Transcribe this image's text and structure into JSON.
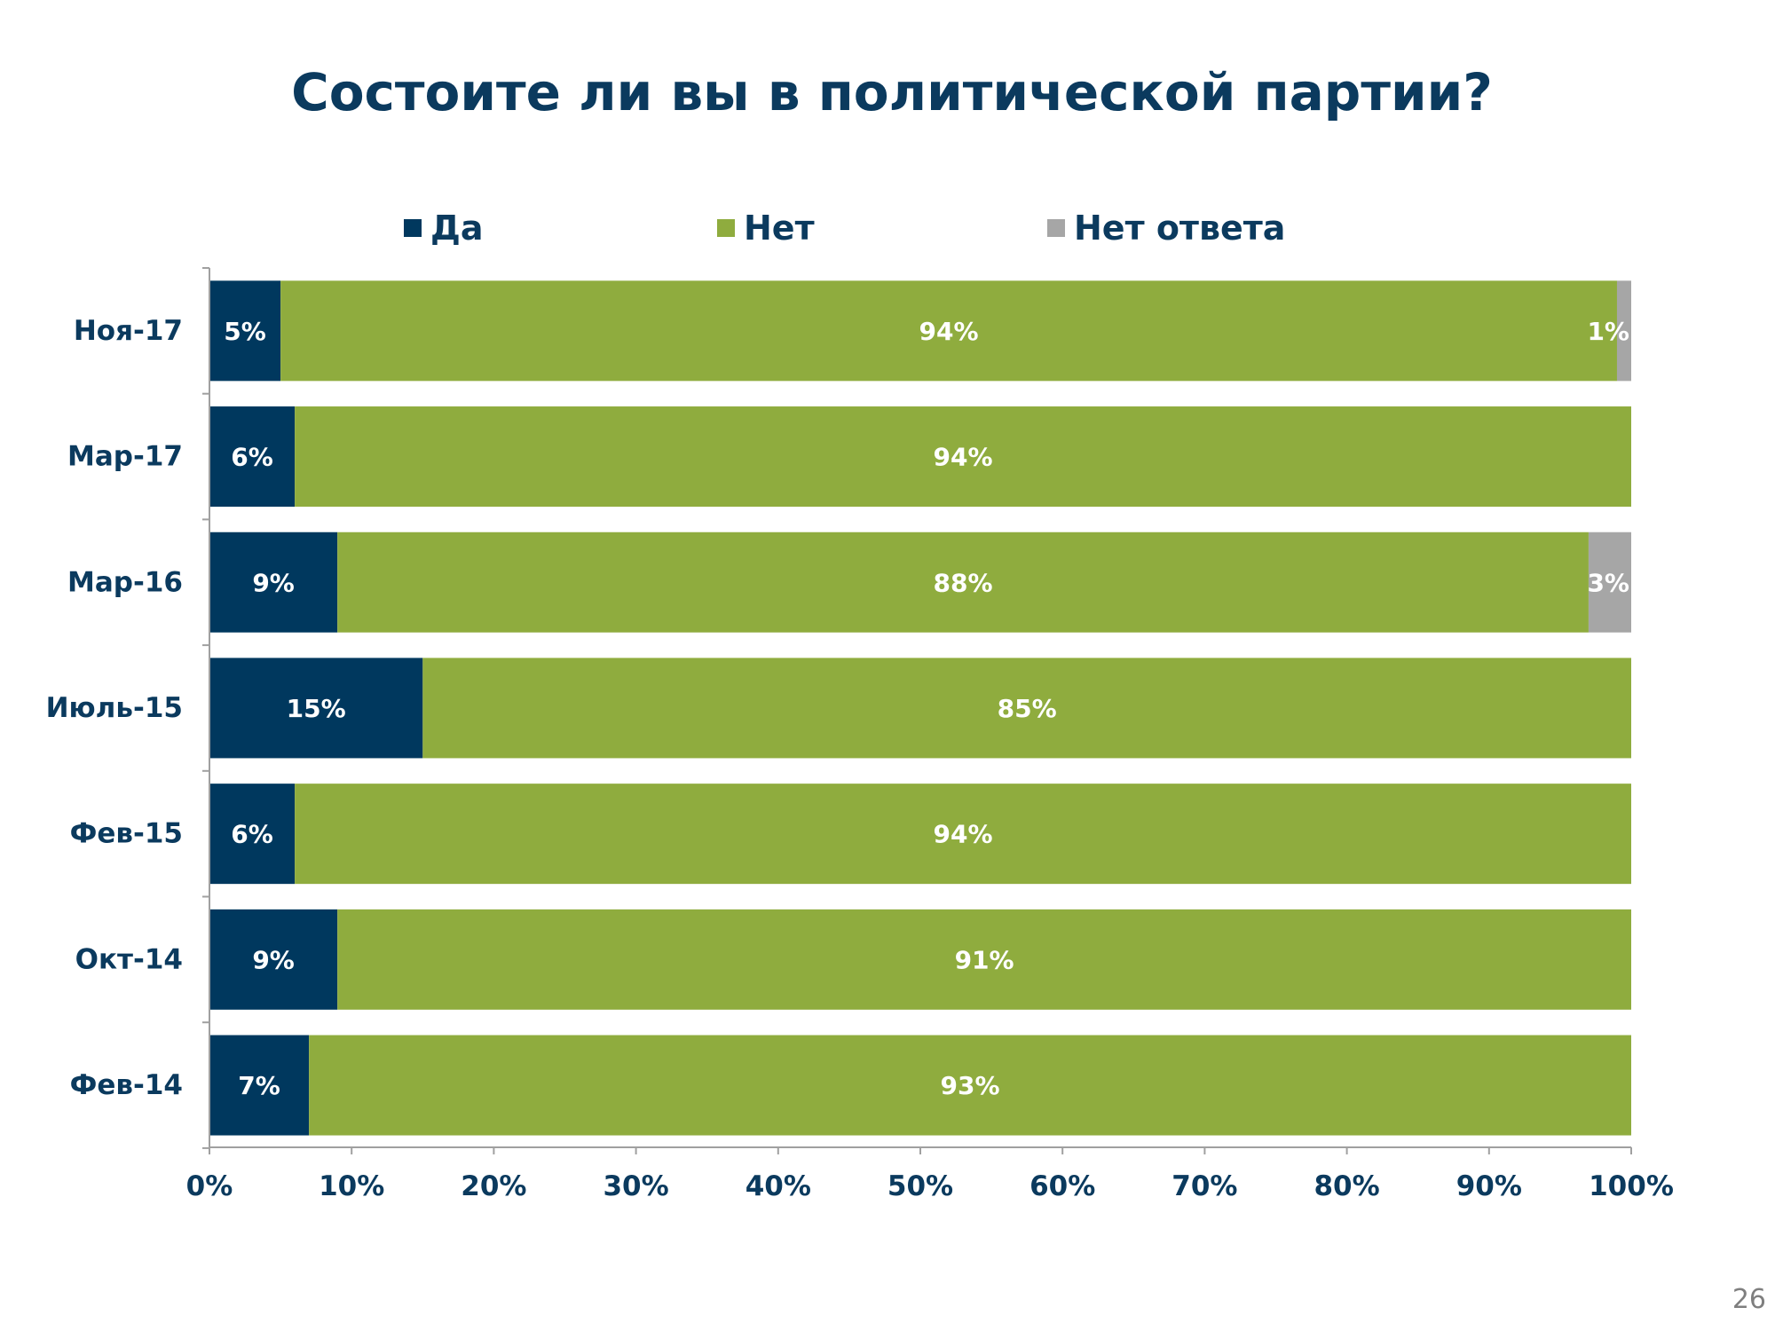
{
  "page_number": "26",
  "chart_data": {
    "type": "bar",
    "orientation": "horizontal",
    "stacked": "percent",
    "title": "Состоите ли вы в политической партии?",
    "categories": [
      "Ноя-17",
      "Мар-17",
      "Мар-16",
      "Июль-15",
      "Фев-15",
      "Окт-14",
      "Фев-14"
    ],
    "series": [
      {
        "name": "Да",
        "color": "#00385e",
        "values": [
          5,
          6,
          9,
          15,
          6,
          9,
          7
        ],
        "labels": [
          "5%",
          "6%",
          "9%",
          "15%",
          "6%",
          "9%",
          "7%"
        ]
      },
      {
        "name": "Нет",
        "color": "#8fac3e",
        "values": [
          94,
          94,
          88,
          85,
          94,
          91,
          93
        ],
        "labels": [
          "94%",
          "94%",
          "88%",
          "85%",
          "94%",
          "91%",
          "93%"
        ]
      },
      {
        "name": "Нет ответа",
        "color": "#a6a6a6",
        "values": [
          1,
          0,
          3,
          0,
          0,
          0,
          0
        ],
        "labels": [
          "1%",
          "",
          "3%",
          "",
          "",
          "",
          ""
        ]
      }
    ],
    "xlim": [
      0,
      100
    ],
    "xticks": [
      "0%",
      "10%",
      "20%",
      "30%",
      "40%",
      "50%",
      "60%",
      "70%",
      "80%",
      "90%",
      "100%"
    ],
    "legend": "top",
    "grid": false
  }
}
